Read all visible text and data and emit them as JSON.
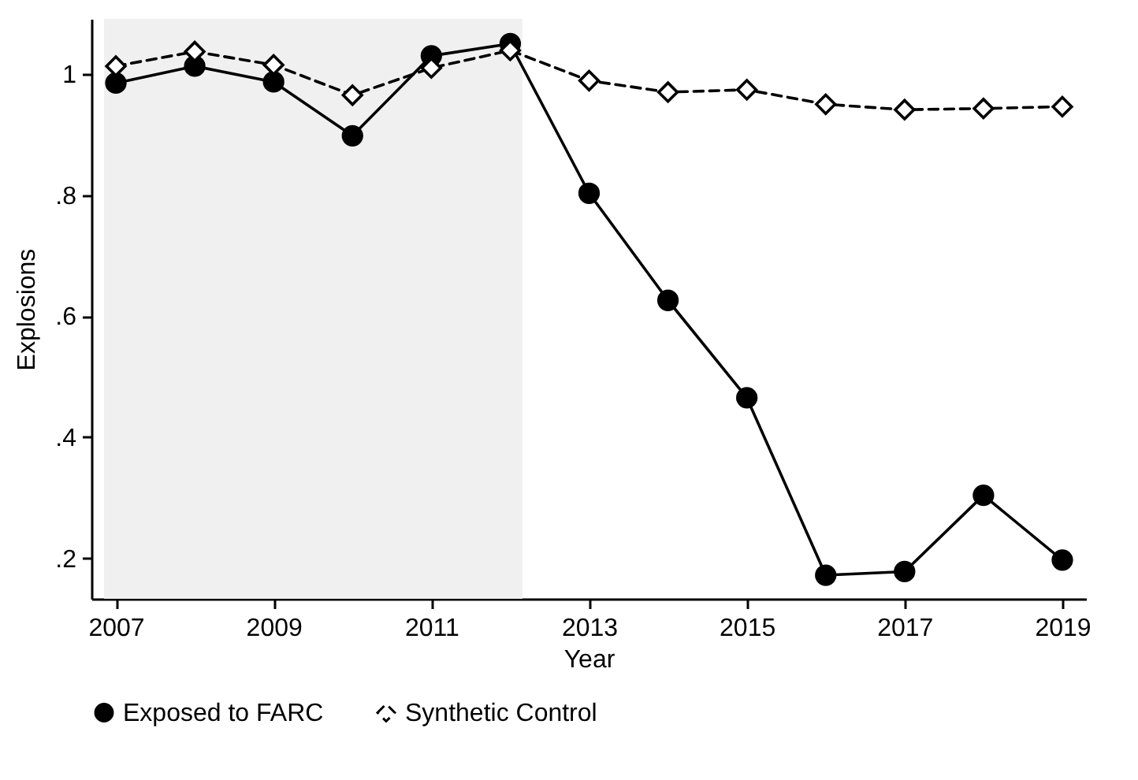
{
  "chart_data": {
    "type": "line",
    "xlabel": "Year",
    "ylabel": "Explosions",
    "x": [
      2007,
      2008,
      2009,
      2010,
      2011,
      2012,
      2013,
      2014,
      2015,
      2016,
      2017,
      2018,
      2019
    ],
    "series": [
      {
        "name": "Exposed to FARC",
        "color": "#000000",
        "marker": "circle",
        "line_style": "solid",
        "values": [
          0.985,
          1.013,
          0.987,
          0.898,
          1.03,
          1.05,
          0.803,
          0.626,
          0.465,
          0.172,
          0.178,
          0.304,
          0.197
        ]
      },
      {
        "name": "Synthetic Control",
        "color": "#000000",
        "marker": "diamond",
        "line_style": "dashed",
        "values": [
          1.013,
          1.037,
          1.015,
          0.965,
          1.01,
          1.039,
          0.989,
          0.97,
          0.974,
          0.95,
          0.941,
          0.943,
          0.946
        ]
      }
    ],
    "xlim": [
      2006.69,
      2019.3
    ],
    "xticks": [
      2007,
      2009,
      2011,
      2013,
      2015,
      2017,
      2019
    ],
    "ylim": [
      0.133,
      1.091
    ],
    "yticks": [
      {
        "value": 0.2,
        "label": ".2"
      },
      {
        "value": 0.4,
        "label": ".4"
      },
      {
        "value": 0.6,
        "label": ".6"
      },
      {
        "value": 0.8,
        "label": ".8"
      },
      1
    ],
    "bands": [
      {
        "axis": "x",
        "from": 2006.85,
        "to": 2012.15,
        "color": "#f0f0f0"
      }
    ],
    "grid": false,
    "legend": "bottom"
  }
}
